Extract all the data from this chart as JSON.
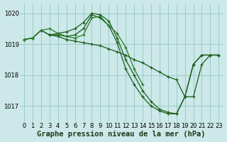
{
  "title": "Graphe pression niveau de la mer (hPa)",
  "bg_color": "#cce8e8",
  "grid_color": "#99cccc",
  "line_color_dark": "#1a5c1a",
  "line_color_mid": "#2a7a2a",
  "xlim": [
    -0.5,
    23.5
  ],
  "ylim": [
    1016.5,
    1020.3
  ],
  "yticks": [
    1017,
    1018,
    1019,
    1020
  ],
  "xticks": [
    0,
    1,
    2,
    3,
    4,
    5,
    6,
    7,
    8,
    9,
    10,
    11,
    12,
    13,
    14,
    15,
    16,
    17,
    18,
    19,
    20,
    21,
    22,
    23
  ],
  "lines": [
    {
      "x": [
        0,
        1,
        2,
        3,
        4,
        5,
        6,
        7,
        8,
        9,
        10,
        11,
        12,
        13,
        14,
        15,
        16,
        17,
        18,
        19,
        20,
        21,
        22,
        23
      ],
      "y": [
        1019.15,
        1019.2,
        1019.45,
        1019.3,
        1019.3,
        1019.25,
        1019.3,
        1019.5,
        1019.95,
        1019.85,
        1019.6,
        1019.05,
        1018.2,
        1017.7,
        1017.3,
        1017.0,
        1016.85,
        1016.75,
        1016.75,
        1017.3,
        1018.35,
        1018.65,
        1018.65,
        1018.65
      ]
    },
    {
      "x": [
        0,
        1,
        2,
        3,
        4,
        5,
        6,
        7,
        8,
        9,
        10,
        11,
        12,
        13,
        14,
        15,
        16,
        17,
        18,
        19,
        20,
        21,
        22,
        23
      ],
      "y": [
        1019.15,
        1019.2,
        1019.45,
        1019.3,
        1019.35,
        1019.4,
        1019.5,
        1019.7,
        1020.0,
        1019.95,
        1019.75,
        1019.2,
        1018.5,
        1018.0,
        1017.5,
        1017.15,
        1016.9,
        1016.8,
        1016.75,
        1017.3,
        1018.35,
        1018.65,
        1018.65,
        1018.65
      ]
    },
    {
      "x": [
        0,
        1,
        2,
        3,
        4,
        5,
        6,
        7,
        8,
        9,
        10,
        11,
        12,
        13,
        14
      ],
      "y": [
        1019.15,
        1019.2,
        1019.45,
        1019.5,
        1019.35,
        1019.25,
        1019.2,
        1019.3,
        1019.85,
        1019.9,
        1019.6,
        1019.35,
        1018.9,
        1018.2,
        1017.7
      ]
    },
    {
      "x": [
        3,
        4,
        5,
        6,
        7,
        8,
        9,
        10,
        11,
        12,
        13,
        14,
        15,
        16,
        17,
        18,
        19,
        20,
        21,
        22,
        23
      ],
      "y": [
        1019.3,
        1019.25,
        1019.15,
        1019.1,
        1019.05,
        1019.0,
        1018.95,
        1018.85,
        1018.75,
        1018.65,
        1018.5,
        1018.4,
        1018.25,
        1018.1,
        1017.95,
        1017.85,
        1017.3,
        1017.3,
        1018.35,
        1018.65,
        1018.65
      ]
    }
  ],
  "xlabel_fontsize": 7.5,
  "tick_fontsize": 6
}
